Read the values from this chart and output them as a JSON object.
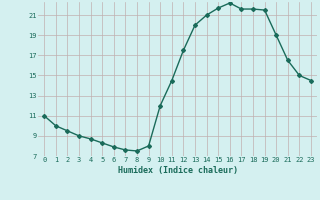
{
  "x": [
    0,
    1,
    2,
    3,
    4,
    5,
    6,
    7,
    8,
    9,
    10,
    11,
    12,
    13,
    14,
    15,
    16,
    17,
    18,
    19,
    20,
    21,
    22,
    23
  ],
  "y": [
    11.0,
    10.0,
    9.5,
    9.0,
    8.7,
    8.3,
    7.9,
    7.6,
    7.5,
    8.0,
    12.0,
    14.5,
    17.5,
    20.0,
    21.0,
    21.7,
    22.2,
    21.6,
    21.6,
    21.5,
    19.0,
    16.5,
    15.0,
    14.5
  ],
  "xlabel": "Humidex (Indice chaleur)",
  "ylim": [
    7,
    22
  ],
  "xlim": [
    -0.5,
    23.5
  ],
  "yticks": [
    7,
    9,
    11,
    13,
    15,
    17,
    19,
    21
  ],
  "xticks": [
    0,
    1,
    2,
    3,
    4,
    5,
    6,
    7,
    8,
    9,
    10,
    11,
    12,
    13,
    14,
    15,
    16,
    17,
    18,
    19,
    20,
    21,
    22,
    23
  ],
  "line_color": "#1a6b5a",
  "marker": "D",
  "marker_size": 2,
  "bg_color": "#d4f0f0",
  "grid_color": "#c0b0b0",
  "xlabel_color": "#1a6b5a",
  "tick_color": "#1a6b5a",
  "linewidth": 1.0,
  "tick_fontsize": 5.0,
  "xlabel_fontsize": 6.0
}
